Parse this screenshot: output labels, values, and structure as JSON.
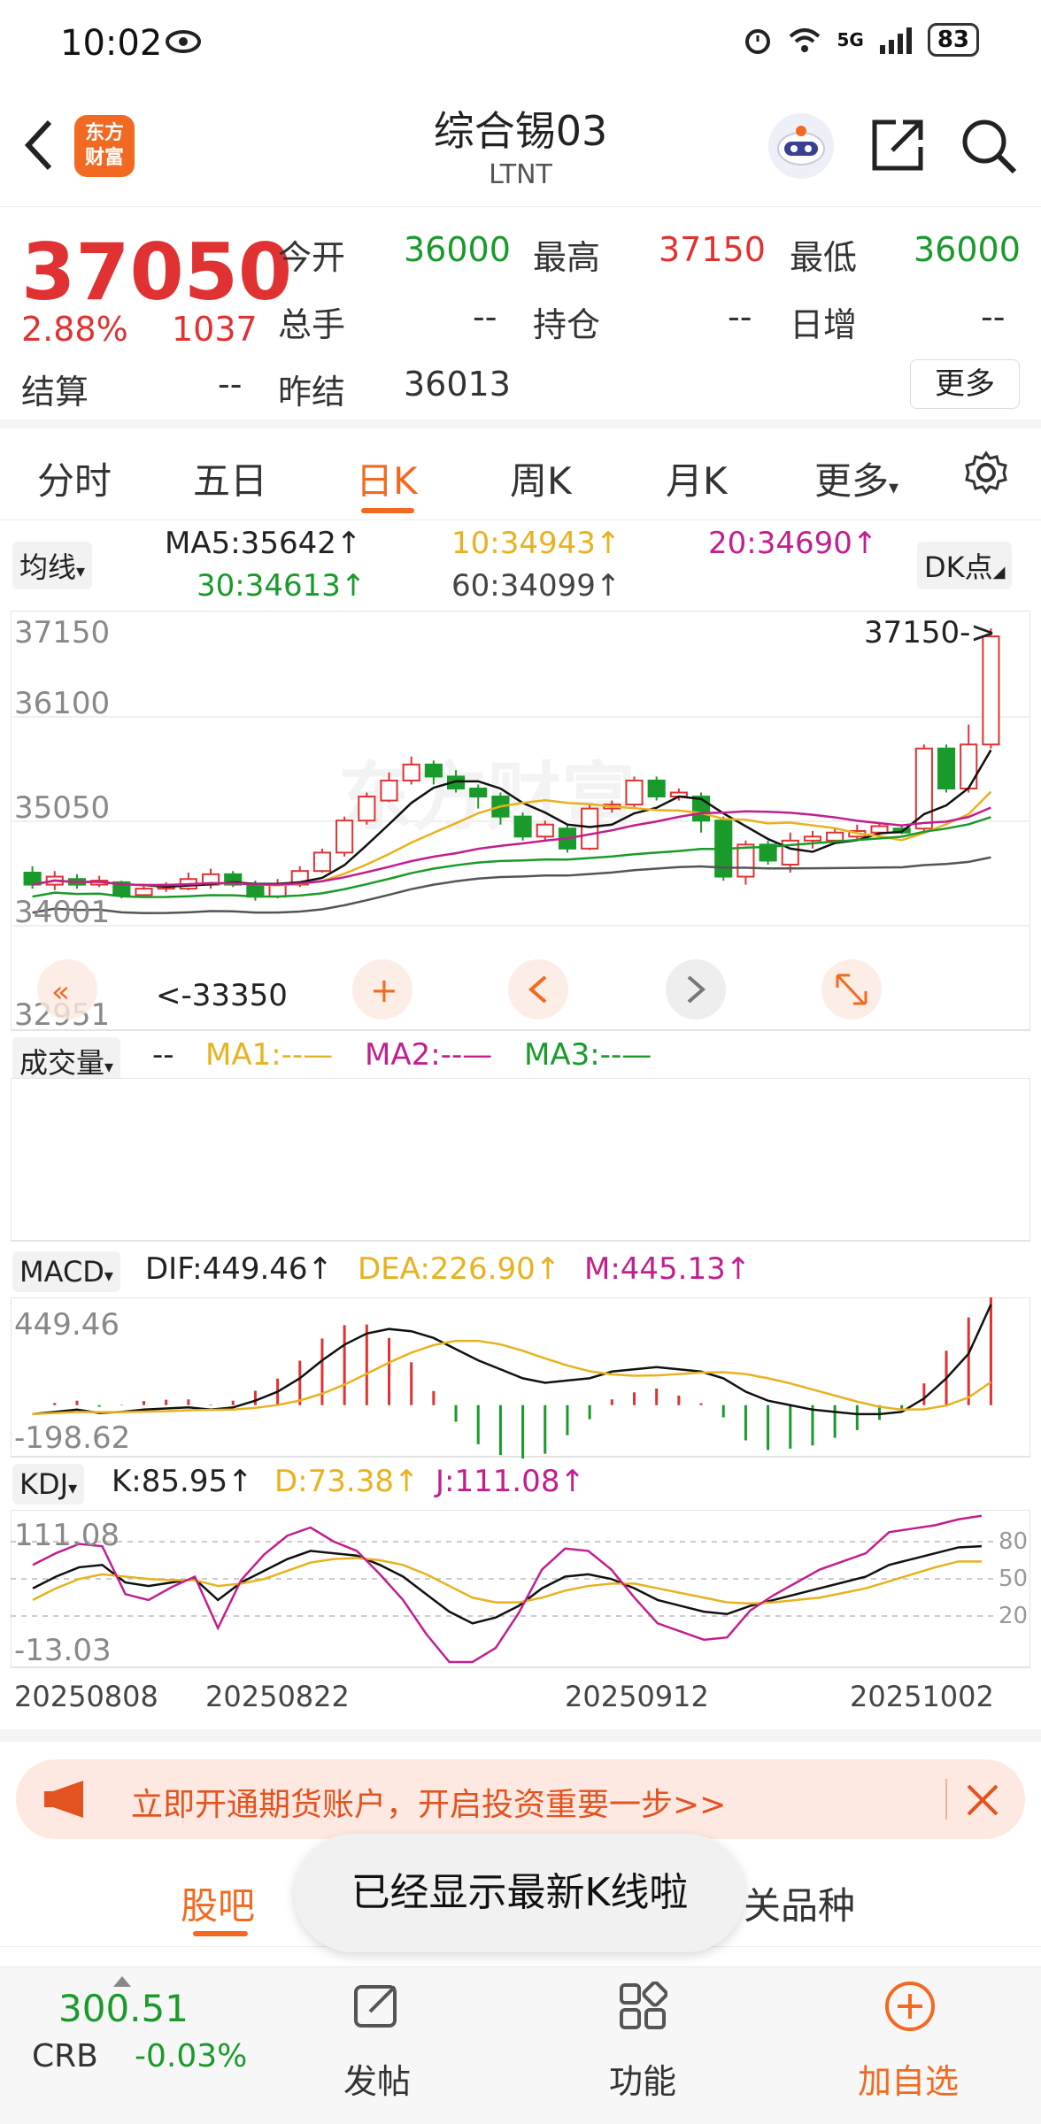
{
  "status": {
    "time": "10:02",
    "battery": "83",
    "signal": "5G"
  },
  "header": {
    "title": "综合锡03",
    "subtitle": "LTNT",
    "logo_line1": "东方",
    "logo_line2": "财富"
  },
  "quote": {
    "price": "37050",
    "change_pct": "2.88%",
    "change": "1037",
    "open_label": "今开",
    "open": "36000",
    "high_label": "最高",
    "high": "37150",
    "low_label": "最低",
    "low": "36000",
    "volume_label": "总手",
    "volume": "--",
    "oi_label": "持仓",
    "oi": "--",
    "daily_inc_label": "日增",
    "daily_inc": "--",
    "settle_label": "结算",
    "settle": "--",
    "prev_settle_label": "昨结",
    "prev_settle": "36013",
    "more_label": "更多"
  },
  "tabs": [
    "分时",
    "五日",
    "日K",
    "周K",
    "月K",
    "更多"
  ],
  "active_tab": "日K",
  "ma": {
    "selector": "均线",
    "ma5": "MA5:35642↑",
    "ma10": "10:34943↑",
    "ma20": "20:34690↑",
    "ma30": "30:34613↑",
    "ma60": "60:34099↑",
    "dk": "DK点"
  },
  "kline": {
    "axis_top": "37150",
    "axis_2": "36100",
    "axis_3": "35050",
    "axis_4": "34001",
    "axis_bottom": "32951",
    "high_marker": "37150->",
    "low_marker": "<-33350"
  },
  "volume": {
    "selector": "成交量",
    "value": "--",
    "ma1": "MA1:--—",
    "ma2": "MA2:--—",
    "ma3": "MA3:--—"
  },
  "macd": {
    "selector": "MACD",
    "dif": "DIF:449.46↑",
    "dea": "DEA:226.90↑",
    "m": "M:445.13↑",
    "axis_top": "449.46",
    "axis_bottom": "-198.62"
  },
  "kdj": {
    "selector": "KDJ",
    "k": "K:85.95↑",
    "d": "D:73.38↑",
    "j": "J:111.08↑",
    "axis_top": "111.08",
    "axis_bottom": "-13.03",
    "lvl80": "80",
    "lvl50": "50",
    "lvl20": "20"
  },
  "dates": [
    "20250808",
    "20250822",
    "20250912",
    "20251002"
  ],
  "banner": {
    "text": "立即开通期货账户，开启投资重要一步>>"
  },
  "bottom_tabs": {
    "left": "股吧",
    "right": "关品种"
  },
  "toast": "已经显示最新K线啦",
  "bottombar": {
    "crb_value": "300.51",
    "crb_label": "CRB",
    "crb_change": "-0.03%",
    "post": "发帖",
    "func": "功能",
    "add": "加自选"
  },
  "colors": {
    "up": "#e03232",
    "down": "#1a9a2a",
    "accent": "#f26a21"
  }
}
